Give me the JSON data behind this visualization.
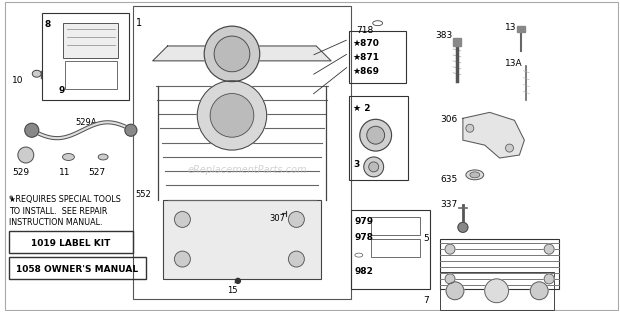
{
  "bg_color": "#ffffff",
  "watermark": "eReplacementParts.com",
  "star_note_line1": "* REQUIRES SPECIAL TOOLS",
  "star_note_line2": "TO INSTALL.  SEE REPAIR",
  "star_note_line3": "INSTRUCTION MANUAL.",
  "label_kit": "1019 LABEL KIT",
  "owners_manual": "1058 OWNER'S MANUAL",
  "figsize": [
    6.2,
    3.12
  ],
  "dpi": 100
}
